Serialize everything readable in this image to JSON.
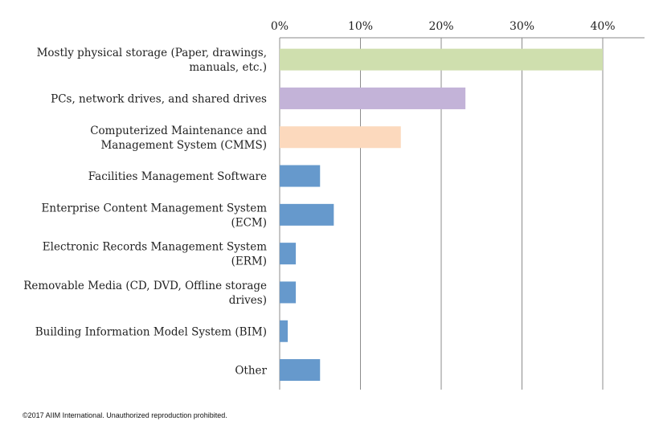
{
  "chart_data": {
    "type": "bar",
    "orientation": "horizontal",
    "categories": [
      [
        "Mostly physical storage (Paper, drawings,",
        "manuals, etc.)"
      ],
      [
        "PCs, network drives, and shared drives"
      ],
      [
        "Computerized Maintenance and",
        "Management System (CMMS)"
      ],
      [
        "Facilities Management Software"
      ],
      [
        "Enterprise Content Management System",
        "(ECM)"
      ],
      [
        "Electronic Records Management System",
        "(ERM)"
      ],
      [
        "Removable Media (CD, DVD, Offline storage",
        "drives)"
      ],
      [
        "Building Information Model System (BIM)"
      ],
      [
        "Other"
      ]
    ],
    "values": [
      40,
      23,
      15,
      5,
      6.7,
      2,
      2,
      1,
      5
    ],
    "colors": [
      "#cfdfae",
      "#c3b3d8",
      "#fcd9bd",
      "#6699cc",
      "#6699cc",
      "#6699cc",
      "#6699cc",
      "#6699cc",
      "#6699cc"
    ],
    "xlim": [
      0,
      45
    ],
    "ticks": [
      0,
      10,
      20,
      30,
      40
    ],
    "tick_labels": [
      "0%",
      "10%",
      "20%",
      "30%",
      "40%"
    ],
    "axis_position": "top",
    "grid": true
  },
  "footer": {
    "copyright": "©2017 AIIM International. Unauthorized reproduction prohibited."
  }
}
